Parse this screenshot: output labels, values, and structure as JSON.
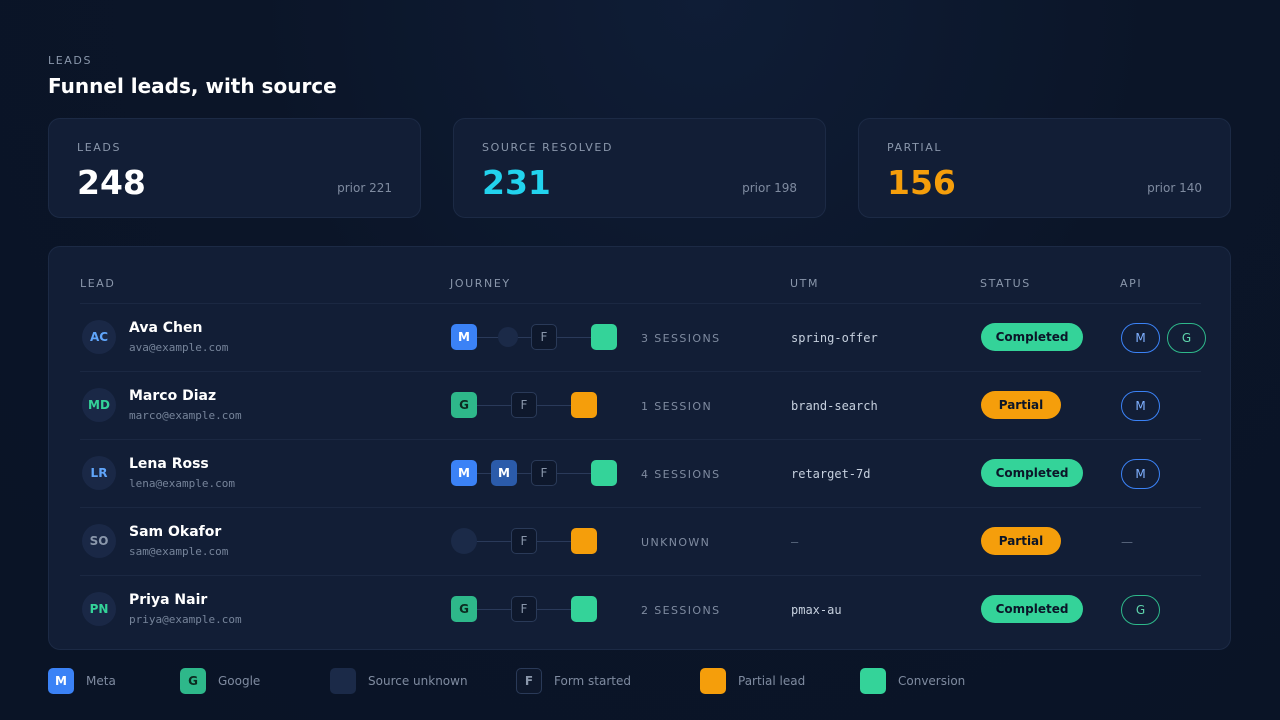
{
  "header": {
    "eyebrow": "LEADS",
    "title": "Funnel leads, with source"
  },
  "kpis": [
    {
      "label": "LEADS",
      "value": "248",
      "prior": "prior 221",
      "color": "#ffffff"
    },
    {
      "label": "SOURCE RESOLVED",
      "value": "231",
      "prior": "prior 198",
      "color": "#22d3ee"
    },
    {
      "label": "PARTIAL",
      "value": "156",
      "prior": "prior 140",
      "color": "#f59e0b"
    }
  ],
  "table": {
    "columns": {
      "lead": "LEAD",
      "journey": "JOURNEY",
      "utm": "UTM",
      "status": "STATUS",
      "api": "API"
    },
    "rows": [
      {
        "initials": "AC",
        "initials_color": "#60a5fa",
        "name": "Ava Chen",
        "email": "ava@example.com",
        "journey": [
          "meta",
          "unknown",
          "form",
          "conversion"
        ],
        "sessions": "3 SESSIONS",
        "utm": "spring-offer",
        "status": "Completed",
        "api": [
          "M",
          "G"
        ]
      },
      {
        "initials": "MD",
        "initials_color": "#34d399",
        "name": "Marco Diaz",
        "email": "marco@example.com",
        "journey": [
          "google",
          "form",
          "partial"
        ],
        "sessions": "1 SESSION",
        "utm": "brand-search",
        "status": "Partial",
        "api": [
          "M"
        ]
      },
      {
        "initials": "LR",
        "initials_color": "#60a5fa",
        "name": "Lena Ross",
        "email": "lena@example.com",
        "journey": [
          "meta",
          "meta",
          "form",
          "conversion"
        ],
        "sessions": "4 SESSIONS",
        "utm": "retarget-7d",
        "status": "Completed",
        "api": [
          "M"
        ]
      },
      {
        "initials": "SO",
        "initials_color": "#8a97ab",
        "name": "Sam Okafor",
        "email": "sam@example.com",
        "journey": [
          "unknown",
          "form",
          "partial"
        ],
        "sessions": "UNKNOWN",
        "utm": "–",
        "status": "Partial",
        "api": [],
        "api_empty": "—"
      },
      {
        "initials": "PN",
        "initials_color": "#34d399",
        "name": "Priya Nair",
        "email": "priya@example.com",
        "journey": [
          "google",
          "form",
          "conversion"
        ],
        "sessions": "2 SESSIONS",
        "utm": "pmax-au",
        "status": "Completed",
        "api": [
          "G"
        ]
      }
    ]
  },
  "legend": [
    {
      "key": "meta",
      "glyph": "M",
      "label": "Meta"
    },
    {
      "key": "google",
      "glyph": "G",
      "label": "Google"
    },
    {
      "key": "unknown",
      "glyph": "",
      "label": "Source unknown"
    },
    {
      "key": "form",
      "glyph": "F",
      "label": "Form started"
    },
    {
      "key": "partial",
      "glyph": "",
      "label": "Partial lead"
    },
    {
      "key": "conversion",
      "glyph": "",
      "label": "Conversion"
    }
  ],
  "node_glyphs": {
    "meta": "M",
    "google": "G",
    "form": "F"
  }
}
